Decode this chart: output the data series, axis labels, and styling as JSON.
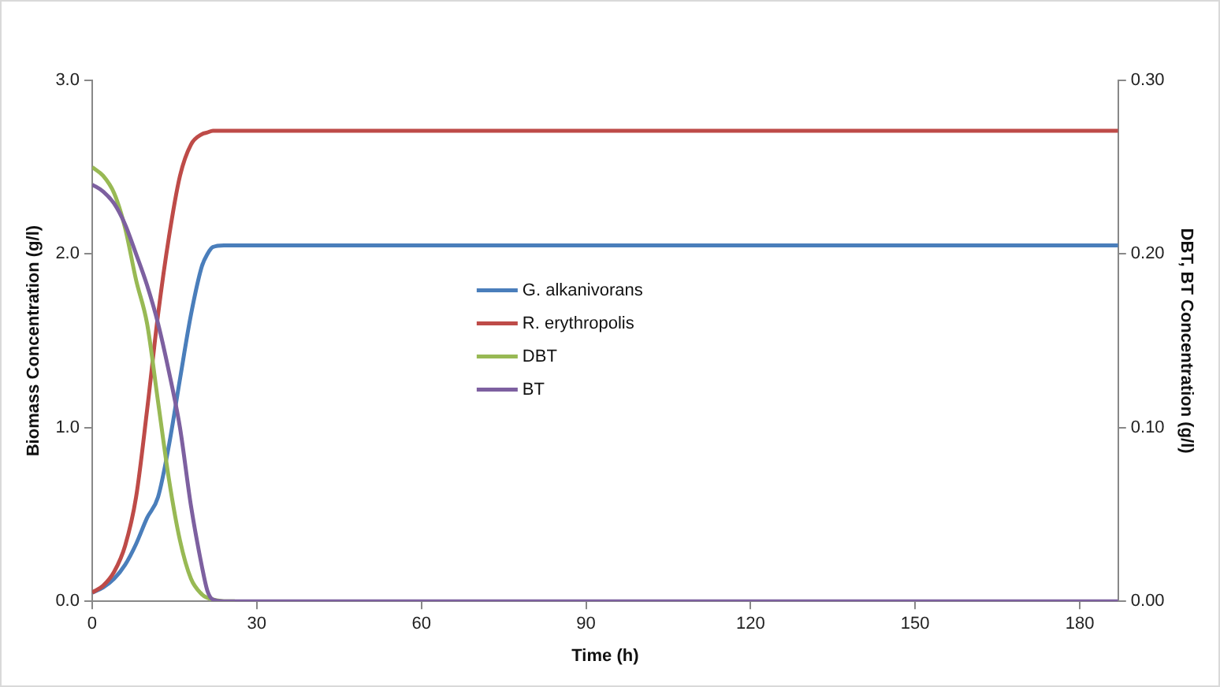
{
  "chart_data": {
    "type": "line",
    "xlabel": "Time (h)",
    "ylabel": "Biomass Concentration (g/l)",
    "y2label": "DBT, BT Concentration (g/l)",
    "xlim": [
      0,
      187
    ],
    "xticks": [
      0,
      30,
      60,
      90,
      120,
      150,
      180
    ],
    "ylim": [
      0,
      3
    ],
    "yticks": [
      {
        "value": 0,
        "label": "0.0"
      },
      {
        "value": 1,
        "label": "1.0"
      },
      {
        "value": 2,
        "label": "2.0"
      },
      {
        "value": 3,
        "label": "3.0"
      }
    ],
    "y2lim": [
      0,
      0.3
    ],
    "y2ticks": [
      {
        "value": 0,
        "label": "0.00"
      },
      {
        "value": 0.1,
        "label": "0.10"
      },
      {
        "value": 0.2,
        "label": "0.20"
      },
      {
        "value": 0.3,
        "label": "0.30"
      }
    ],
    "grid": false,
    "legend": "center",
    "marker": "none",
    "line_style": "solid",
    "x": [
      0,
      2,
      4,
      6,
      8,
      10,
      12,
      14,
      16,
      18,
      20,
      21,
      22,
      24,
      26,
      30,
      60,
      90,
      120,
      150,
      187
    ],
    "series": [
      {
        "name": "G. alkanivorans",
        "color": "#4a7ebb",
        "values": [
          0.05,
          0.08,
          0.13,
          0.21,
          0.33,
          0.48,
          0.6,
          0.9,
          1.28,
          1.65,
          1.93,
          2.0,
          2.04,
          2.05,
          2.05,
          2.05,
          2.05,
          2.05,
          2.05,
          2.05,
          2.05
        ]
      },
      {
        "name": "R. erythropolis",
        "color": "#be4b48",
        "values": [
          0.05,
          0.09,
          0.17,
          0.32,
          0.6,
          1.1,
          1.65,
          2.1,
          2.45,
          2.63,
          2.69,
          2.7,
          2.71,
          2.71,
          2.71,
          2.71,
          2.71,
          2.71,
          2.71,
          2.71,
          2.71
        ]
      },
      {
        "name": "DBT",
        "color": "#98b954",
        "axis": "y2",
        "values": [
          0.25,
          0.245,
          0.235,
          0.215,
          0.185,
          0.16,
          0.115,
          0.07,
          0.035,
          0.013,
          0.004,
          0.002,
          0.001,
          0,
          0,
          null,
          null,
          null,
          null,
          null,
          null
        ]
      },
      {
        "name": "BT",
        "color": "#7d60a0",
        "axis": "y2",
        "values": [
          0.24,
          0.236,
          0.229,
          0.217,
          0.2,
          0.182,
          0.16,
          0.132,
          0.1,
          0.055,
          0.02,
          0.006,
          0.001,
          0,
          0,
          0,
          0,
          0,
          0,
          0,
          0
        ]
      }
    ]
  }
}
